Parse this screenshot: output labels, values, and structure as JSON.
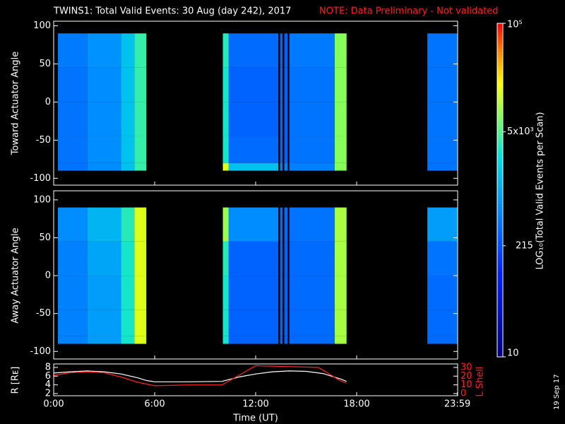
{
  "header": {
    "title": "TWINS1: Total Valid Events: 30 Aug (day 242), 2017",
    "note": "NOTE: Data Preliminary - Not validated"
  },
  "footer": {
    "date": "19 Sep 17"
  },
  "colorbar": {
    "label": "LOG₁₀(Total Valid Events per Scan)",
    "zlim": [
      10,
      100000
    ],
    "log": true,
    "zticks": [
      {
        "value": 10,
        "label": "10"
      },
      {
        "value": 215,
        "label": "215"
      },
      {
        "value": 5000,
        "label": "5x10³"
      },
      {
        "value": 100000,
        "label": "10⁵"
      }
    ],
    "colorscale": [
      [
        0,
        "#000080"
      ],
      [
        0.25,
        "#0020ff"
      ],
      [
        0.45,
        "#0090ff"
      ],
      [
        0.6,
        "#00e0e0"
      ],
      [
        0.72,
        "#80ff60"
      ],
      [
        0.82,
        "#ffff00"
      ],
      [
        0.92,
        "#ff8000"
      ],
      [
        1,
        "#ff0000"
      ]
    ]
  },
  "chart_data": [
    {
      "type": "heatmap",
      "y_label": "Toward Actuator Angle",
      "xlim": [
        0,
        24
      ],
      "ylim": [
        -109,
        106
      ],
      "yticks": [
        -100,
        -50,
        0,
        50,
        100
      ],
      "xbins": [
        0.25,
        2,
        4,
        4.8,
        5.5,
        10.05,
        10.4,
        13.35,
        13.45,
        13.6,
        13.7,
        13.9,
        14.0,
        16.7,
        17.4,
        22.2,
        24
      ],
      "ybins": [
        -90,
        -80,
        -45,
        0,
        45,
        90
      ],
      "values": [
        [
          400,
          600,
          1500,
          4000,
          null,
          15000,
          1500,
          null,
          500,
          null,
          500,
          null,
          500,
          8000,
          null,
          400
        ],
        [
          400,
          600,
          1500,
          4000,
          null,
          3000,
          350,
          null,
          300,
          null,
          300,
          null,
          400,
          8000,
          null,
          400
        ],
        [
          400,
          600,
          1500,
          4000,
          null,
          3000,
          300,
          null,
          300,
          null,
          300,
          null,
          400,
          8000,
          null,
          400
        ],
        [
          400,
          600,
          1500,
          4000,
          null,
          3000,
          300,
          null,
          300,
          null,
          300,
          null,
          400,
          8000,
          null,
          400
        ],
        [
          450,
          650,
          1500,
          4000,
          null,
          3500,
          350,
          null,
          300,
          null,
          300,
          null,
          450,
          8000,
          null,
          400
        ]
      ]
    },
    {
      "type": "heatmap",
      "y_label": "Away Actuator Angle",
      "xlim": [
        0,
        24
      ],
      "ylim": [
        -110,
        112
      ],
      "yticks": [
        -100,
        -50,
        0,
        50,
        100
      ],
      "xbins": [
        0.25,
        2,
        4,
        4.8,
        5.5,
        10.05,
        10.4,
        13.35,
        13.45,
        13.6,
        13.7,
        13.9,
        14.0,
        16.7,
        17.4,
        22.2,
        24
      ],
      "ybins": [
        -90,
        -80,
        -45,
        0,
        45,
        90
      ],
      "values": [
        [
          500,
          800,
          3000,
          15000,
          null,
          3000,
          300,
          null,
          300,
          null,
          300,
          null,
          350,
          10000,
          null,
          350
        ],
        [
          500,
          800,
          3000,
          15000,
          null,
          3000,
          300,
          null,
          300,
          null,
          300,
          null,
          350,
          10000,
          null,
          350
        ],
        [
          500,
          800,
          3000,
          15000,
          null,
          3000,
          300,
          null,
          300,
          null,
          300,
          null,
          350,
          10000,
          null,
          350
        ],
        [
          500,
          900,
          3000,
          15000,
          null,
          3500,
          300,
          null,
          300,
          null,
          300,
          null,
          350,
          10000,
          null,
          400
        ],
        [
          600,
          1200,
          3500,
          15000,
          null,
          9000,
          600,
          null,
          350,
          null,
          350,
          null,
          400,
          10000,
          null,
          800
        ]
      ]
    },
    {
      "type": "line",
      "x_label": "Time (UT)",
      "y_label": "R [Rᴇ]",
      "y2_label": "L Shell",
      "xlim": [
        0,
        24
      ],
      "ylim": [
        1.5,
        8.8
      ],
      "y2lim": [
        -2.4,
        34
      ],
      "xticks": [
        {
          "value": 0,
          "label": "0:00"
        },
        {
          "value": 6,
          "label": "6:00"
        },
        {
          "value": 12,
          "label": "12:00"
        },
        {
          "value": 18,
          "label": "18:00"
        },
        {
          "value": 23.983,
          "label": "23:59"
        }
      ],
      "yticks": [
        2,
        4,
        6,
        8
      ],
      "y2ticks": [
        0,
        10,
        20,
        30
      ],
      "series": [
        {
          "name": "R",
          "color": "#ffffff",
          "x": [
            0,
            1,
            2,
            3,
            4,
            5,
            5.5,
            6,
            8,
            10,
            11,
            12,
            13,
            14,
            15,
            16,
            17,
            17.4
          ],
          "values": [
            6.7,
            7.0,
            7.2,
            7.0,
            6.5,
            5.6,
            5.0,
            4.7,
            4.7,
            4.8,
            5.8,
            6.5,
            7.0,
            7.2,
            7.1,
            6.6,
            5.4,
            4.8
          ]
        },
        {
          "name": "L Shell",
          "color": "#ff2020",
          "axis": "y2",
          "x": [
            0,
            1,
            2,
            3,
            4,
            5,
            6,
            8,
            10,
            11,
            12,
            15.7,
            16,
            17,
            17.4
          ],
          "values": [
            21,
            24,
            25,
            24,
            19,
            13,
            9,
            10,
            10,
            21,
            32,
            30,
            27,
            15,
            12
          ]
        }
      ]
    }
  ]
}
